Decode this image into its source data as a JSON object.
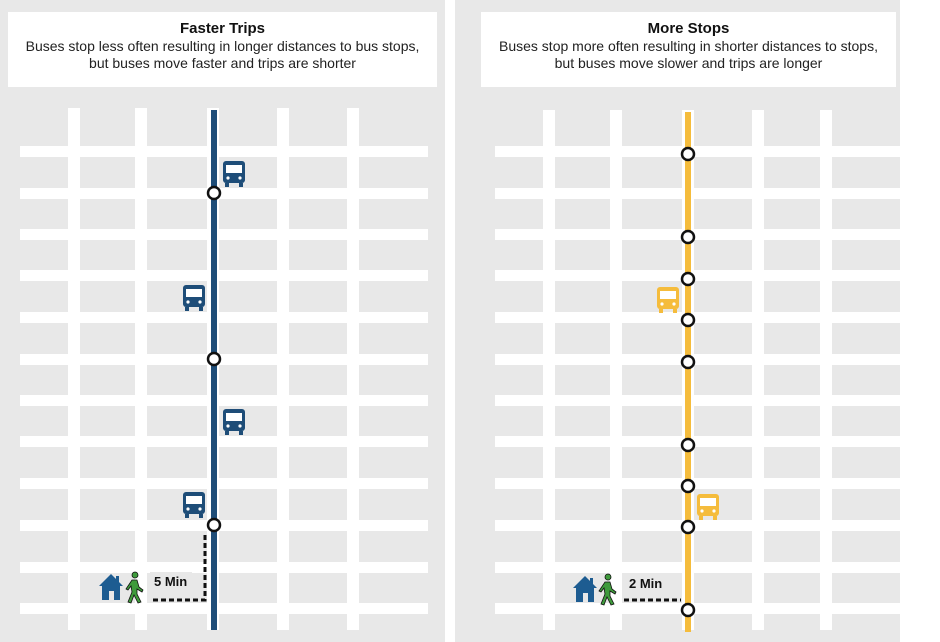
{
  "panels": {
    "left": {
      "title": "Faster Trips",
      "desc_line1": "Buses stop less often resulting in longer distances to bus stops,",
      "desc_line2": "but buses move faster and trips are shorter",
      "route_color": "#1e4d78",
      "bus_color": "#1e4d78",
      "walk_label": "5 Min"
    },
    "right": {
      "title": "More Stops",
      "desc_line1": "Buses stop more often resulting in shorter distances to stops,",
      "desc_line2": "but buses move slower and trips are longer",
      "route_color": "#f5bc3c",
      "bus_color": "#f5bc3c",
      "walk_label": "2 Min"
    }
  },
  "colors": {
    "panel_bg": "#e8e8e8",
    "street": "#ffffff",
    "house": "#1d5c91",
    "pedestrian": "#3f9b3c"
  },
  "icons": [
    "bus-icon",
    "house-icon",
    "pedestrian-icon",
    "bus-stop-marker"
  ]
}
